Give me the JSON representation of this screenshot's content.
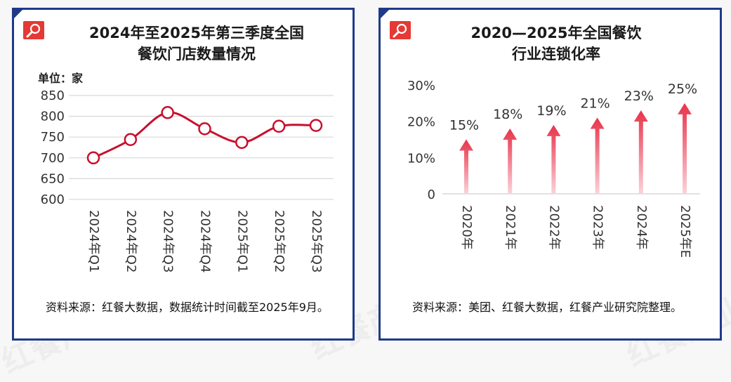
{
  "left_panel": {
    "title_line1": "2024年至2025年第三季度全国",
    "title_line2": "餐饮门店数量情况",
    "unit_label": "单位：家",
    "source": "资料来源：红餐大数据，数据统计时间截至2025年9月。"
  },
  "right_panel": {
    "title_line1": "2020—2025年全国餐饮",
    "title_line2": "行业连锁化率",
    "source": "资料来源：美团、红餐大数据，红餐产业研究院整理。"
  },
  "watermark": "红餐产业研究院",
  "colors": {
    "border": "#1e3a8a",
    "accent": "#e53935",
    "line": "#c8102e",
    "arrow_top": "#e8334a",
    "arrow_bottom": "#fbd3da",
    "grid": "#d9d9d9"
  },
  "chart_data": [
    {
      "type": "line",
      "categories": [
        "2024年Q1",
        "2024年Q2",
        "2024年Q3",
        "2024年Q4",
        "2025年Q1",
        "2025年Q2",
        "2025年Q3"
      ],
      "values": [
        700,
        744,
        809,
        770,
        737,
        776,
        778
      ],
      "ylim": [
        600,
        850
      ],
      "yticks": [
        600,
        650,
        700,
        750,
        800,
        850
      ],
      "ytick_labels": [
        "600",
        "650",
        "700",
        "750",
        "800",
        "850"
      ],
      "grid": true,
      "markers": "open circles"
    },
    {
      "type": "bar",
      "style": "arrows",
      "categories": [
        "2020年",
        "2021年",
        "2022年",
        "2023年",
        "2024年",
        "2025年E"
      ],
      "values": [
        15,
        18,
        19,
        21,
        23,
        25
      ],
      "value_labels": [
        "15%",
        "18%",
        "19%",
        "21%",
        "23%",
        "25%"
      ],
      "ylim": [
        0,
        30
      ],
      "yticks": [
        0,
        10,
        20,
        30
      ],
      "ytick_labels": [
        "0",
        "10%",
        "20%",
        "30%"
      ],
      "grid": false
    }
  ]
}
